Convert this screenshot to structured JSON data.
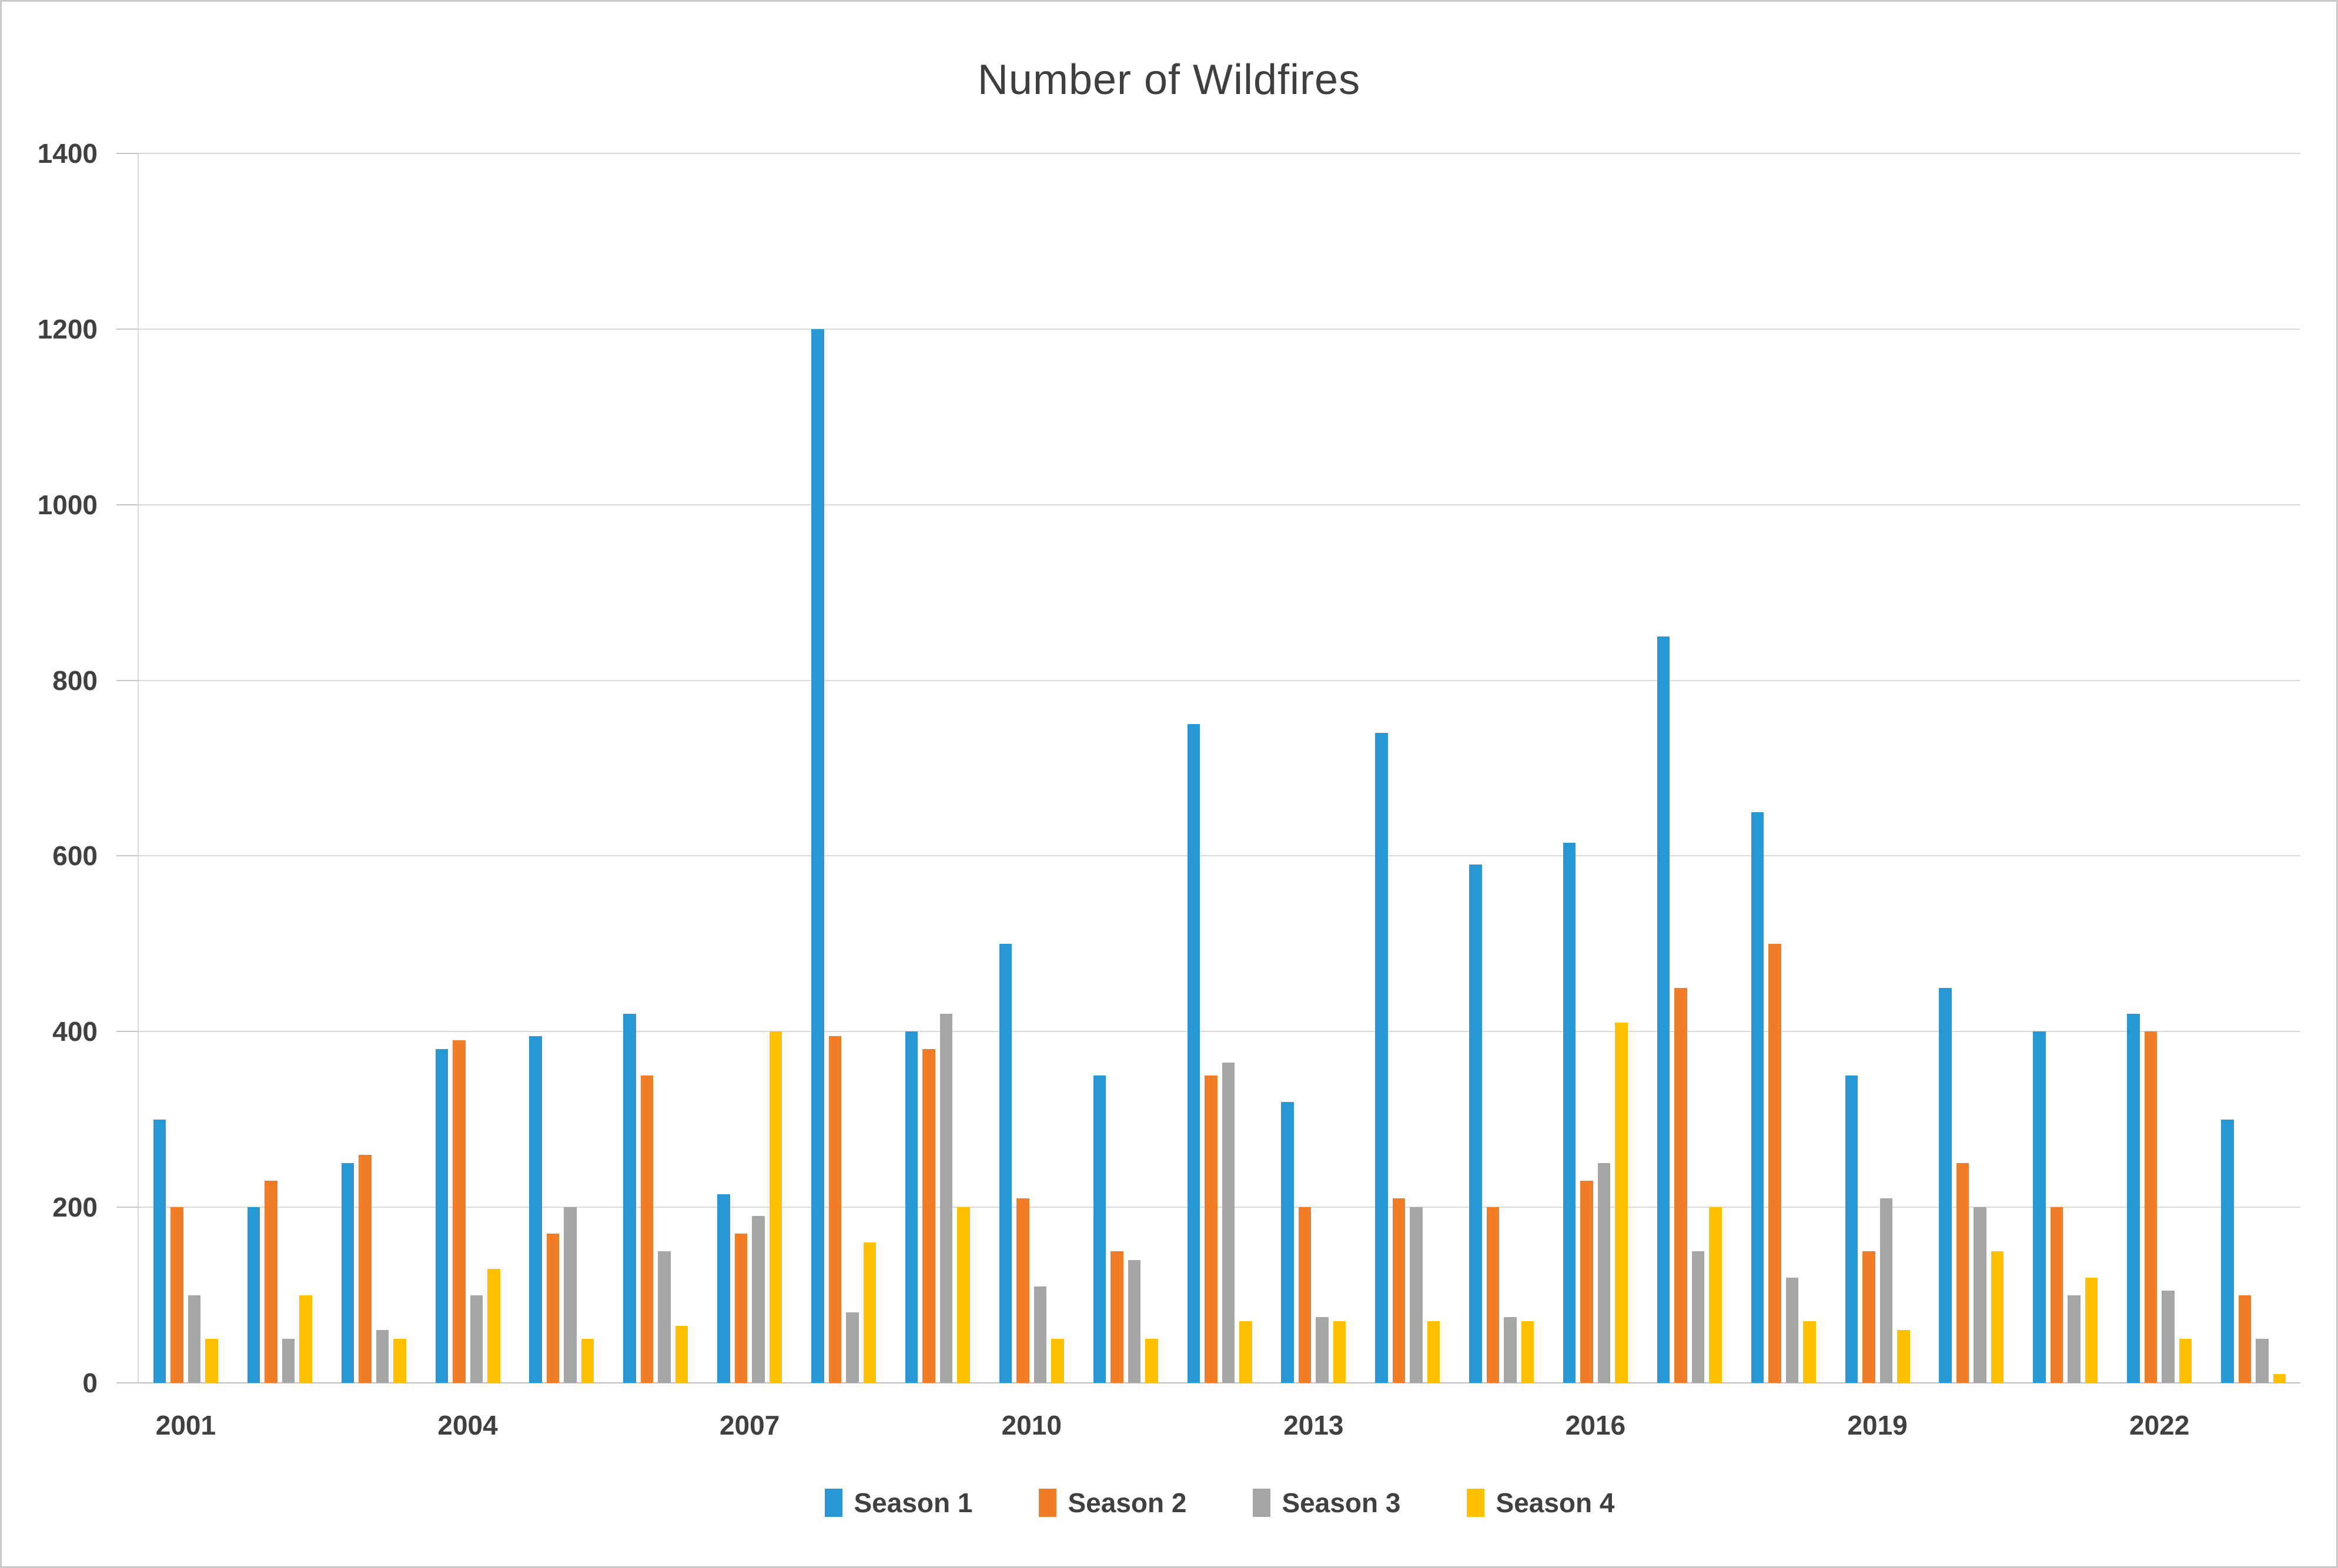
{
  "page": {
    "background_color": "#ffffff",
    "frame_border_color": "#c9c9c9",
    "text_color": "#404040"
  },
  "chart_data": {
    "type": "bar",
    "title": "Number of Wildfires",
    "xlabel": "",
    "ylabel": "",
    "ylim": [
      0,
      1400
    ],
    "y_tick_step": 200,
    "y_tick_labels": [
      "0",
      "200",
      "400",
      "600",
      "800",
      "1000",
      "1200",
      "1400"
    ],
    "grid": true,
    "gridline_color": "#d9d9d9",
    "axis_line_color": "#bfbfbf",
    "legend_position": "bottom",
    "categories": [
      2001,
      2002,
      2003,
      2004,
      2005,
      2006,
      2007,
      2008,
      2009,
      2010,
      2011,
      2012,
      2013,
      2014,
      2015,
      2016,
      2017,
      2018,
      2019,
      2020,
      2021,
      2022,
      2023
    ],
    "x_tick_interval": 3,
    "x_tick_labels": [
      "2001",
      "2004",
      "2007",
      "2010",
      "2013",
      "2016",
      "2019",
      "2022"
    ],
    "series": [
      {
        "name": "Season 1",
        "color": "#2798d4",
        "values": [
          300,
          200,
          250,
          380,
          395,
          420,
          215,
          1200,
          400,
          500,
          350,
          750,
          320,
          740,
          590,
          615,
          850,
          650,
          350,
          450,
          400,
          420,
          300
        ]
      },
      {
        "name": "Season 2",
        "color": "#f17c28",
        "values": [
          200,
          230,
          260,
          390,
          170,
          350,
          170,
          395,
          380,
          210,
          150,
          350,
          200,
          210,
          200,
          230,
          450,
          500,
          150,
          250,
          200,
          400,
          100
        ]
      },
      {
        "name": "Season 3",
        "color": "#a6a6a6",
        "values": [
          100,
          50,
          60,
          100,
          200,
          150,
          190,
          80,
          420,
          110,
          140,
          365,
          75,
          200,
          75,
          250,
          150,
          120,
          210,
          200,
          100,
          105,
          50
        ]
      },
      {
        "name": "Season 4",
        "color": "#ffc000",
        "values": [
          50,
          100,
          50,
          130,
          50,
          65,
          400,
          160,
          200,
          50,
          50,
          70,
          70,
          70,
          70,
          410,
          200,
          70,
          60,
          150,
          120,
          50,
          10
        ]
      }
    ]
  }
}
